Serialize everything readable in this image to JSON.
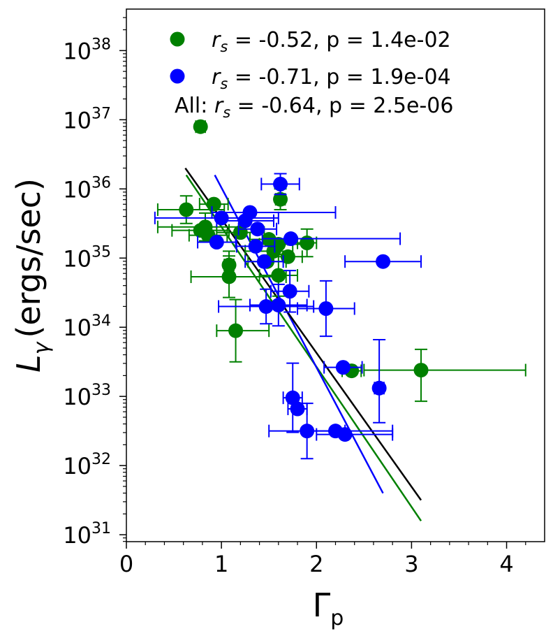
{
  "chart_data": {
    "type": "scatter",
    "xlabel": "Γ",
    "xlabel_sub": "p",
    "ylabel": "L",
    "ylabel_sub": "γ",
    "ylabel_unit": "(ergs/sec)",
    "xlim": [
      0,
      4.4
    ],
    "ylim_log10": [
      30.9,
      38.6
    ],
    "x_ticks": [
      0,
      1,
      2,
      3,
      4
    ],
    "y_ticks_exp": [
      31,
      32,
      33,
      34,
      35,
      36,
      37,
      38
    ],
    "legend": [
      {
        "color": "#008000",
        "label_var": "r",
        "label_sub": "s",
        "label_rest": " = -0.52, p = 1.4e-02"
      },
      {
        "color": "#0000ff",
        "label_var": "r",
        "label_sub": "s",
        "label_rest": " = -0.71, p = 1.9e-04"
      },
      {
        "prefix": "All: ",
        "label_var": "r",
        "label_sub": "s",
        "label_rest": " = -0.64, p = 2.5e-06"
      }
    ],
    "fits": [
      {
        "name": "green fit",
        "color": "#008000",
        "x": [
          0.63,
          3.1
        ],
        "logy": [
          36.2,
          31.2
        ]
      },
      {
        "name": "blue fit",
        "color": "#0000ff",
        "x": [
          0.93,
          2.7
        ],
        "logy": [
          36.2,
          31.6
        ]
      },
      {
        "name": "all fit",
        "color": "#000000",
        "x": [
          0.62,
          3.1
        ],
        "logy": [
          36.3,
          31.5
        ]
      }
    ],
    "series": [
      {
        "name": "green",
        "color": "#008000",
        "points": [
          {
            "x": 0.78,
            "logy": 36.9,
            "xerr": [
              0.05,
              0.05
            ]
          },
          {
            "x": 0.63,
            "logy": 35.7,
            "xerr": [
              0.3,
              0.4
            ],
            "yerr": [
              0.2,
              0.2
            ]
          },
          {
            "x": 0.92,
            "logy": 35.78,
            "xerr": [
              0.15,
              0.15
            ]
          },
          {
            "x": 0.83,
            "logy": 35.45,
            "xerr": [
              0.5,
              0.4
            ],
            "yerr": [
              0.2,
              0.2
            ]
          },
          {
            "x": 0.78,
            "logy": 35.4,
            "xerr": [
              0.3,
              0.3
            ]
          },
          {
            "x": 0.86,
            "logy": 35.33,
            "xerr": [
              0.2,
              0.2
            ]
          },
          {
            "x": 1.62,
            "logy": 35.85,
            "xerr": [
              0.05,
              0.05
            ],
            "yerr": [
              0.15,
              0.15
            ]
          },
          {
            "x": 1.2,
            "logy": 35.37,
            "xerr": [
              0.25,
              0.25
            ]
          },
          {
            "x": 1.5,
            "logy": 35.27,
            "xerr": [
              0.2,
              0.2
            ]
          },
          {
            "x": 1.6,
            "logy": 35.2,
            "xerr": [
              0.2,
              0.3
            ]
          },
          {
            "x": 1.55,
            "logy": 35.1,
            "xerr": [
              0.3,
              0.2
            ]
          },
          {
            "x": 1.9,
            "logy": 35.22,
            "xerr": [
              0.1,
              0.1
            ],
            "yerr": [
              0.2,
              0.2
            ]
          },
          {
            "x": 1.7,
            "logy": 35.02,
            "xerr": [
              0.15,
              0.15
            ]
          },
          {
            "x": 1.48,
            "logy": 34.95,
            "xerr": [
              0.2,
              0.2
            ]
          },
          {
            "x": 1.08,
            "logy": 34.9,
            "xerr": [
              0.05,
              0.05
            ],
            "yerr": [
              0.2,
              0.2
            ]
          },
          {
            "x": 1.08,
            "logy": 34.73,
            "xerr": [
              0.4,
              0.6
            ],
            "yerr": [
              0.3,
              0.3
            ]
          },
          {
            "x": 1.6,
            "logy": 34.75,
            "xerr": [
              0.2,
              0.2
            ],
            "yerr": [
              0.3,
              0.3
            ]
          },
          {
            "x": 1.15,
            "logy": 33.95,
            "xerr": [
              0.2,
              0.35
            ],
            "yerr": [
              0.45,
              0.45
            ]
          },
          {
            "x": 2.37,
            "logy": 33.37,
            "xerr": [
              0.1,
              0.1
            ]
          },
          {
            "x": 3.1,
            "logy": 33.38,
            "xerr": [
              0.6,
              1.1
            ],
            "yerr": [
              0.45,
              0.3
            ]
          }
        ]
      },
      {
        "name": "blue",
        "color": "#0000ff",
        "points": [
          {
            "x": 1.62,
            "logy": 36.07,
            "xerr": [
              0.2,
              0.2
            ],
            "yerr": [
              0.15,
              0.15
            ]
          },
          {
            "x": 1.3,
            "logy": 35.66,
            "xerr": [
              0.4,
              0.9
            ]
          },
          {
            "x": 1.0,
            "logy": 35.58,
            "xerr": [
              0.7,
              0.6
            ]
          },
          {
            "x": 1.25,
            "logy": 35.54,
            "xerr": [
              0.3,
              0.3
            ]
          },
          {
            "x": 1.38,
            "logy": 35.42,
            "xerr": [
              0.2,
              0.2
            ]
          },
          {
            "x": 0.95,
            "logy": 35.23,
            "xerr": [
              0.2,
              0.2
            ]
          },
          {
            "x": 1.73,
            "logy": 35.28,
            "xerr": [
              0.3,
              1.15
            ]
          },
          {
            "x": 1.36,
            "logy": 35.17,
            "xerr": [
              0.2,
              0.2
            ]
          },
          {
            "x": 1.45,
            "logy": 34.95,
            "xerr": [
              0.2,
              0.2
            ]
          },
          {
            "x": 2.7,
            "logy": 34.95,
            "xerr": [
              0.4,
              0.4
            ]
          },
          {
            "x": 1.72,
            "logy": 34.52,
            "xerr": [
              0.2,
              0.2
            ],
            "yerr": [
              0.3,
              0.3
            ]
          },
          {
            "x": 1.47,
            "logy": 34.3,
            "xerr": [
              0.5,
              0.5
            ],
            "yerr": [
              0.25,
              0.25
            ]
          },
          {
            "x": 1.6,
            "logy": 34.32,
            "xerr": [
              0.3,
              0.3
            ],
            "yerr": [
              0.3,
              0.3
            ]
          },
          {
            "x": 2.1,
            "logy": 34.27,
            "xerr": [
              0.3,
              0.3
            ],
            "yerr": [
              0.4,
              0.4
            ]
          },
          {
            "x": 2.28,
            "logy": 33.42,
            "xerr": [
              0.2,
              0.2
            ]
          },
          {
            "x": 2.66,
            "logy": 33.12,
            "xerr": [
              0.05,
              0.05
            ],
            "yerr": [
              0.5,
              0.7
            ]
          },
          {
            "x": 1.75,
            "logy": 32.98,
            "xerr": [
              0.1,
              0.1
            ],
            "yerr": [
              0.5,
              0.5
            ]
          },
          {
            "x": 1.8,
            "logy": 32.82,
            "xerr": [
              0.1,
              0.1
            ]
          },
          {
            "x": 1.9,
            "logy": 32.5,
            "xerr": [
              0.4,
              0.4
            ],
            "yerr": [
              0.4,
              0.4
            ]
          },
          {
            "x": 2.2,
            "logy": 32.5,
            "xerr": [
              0.3,
              0.6
            ]
          },
          {
            "x": 2.3,
            "logy": 32.45,
            "xerr": [
              0.3,
              0.5
            ]
          }
        ]
      }
    ]
  }
}
